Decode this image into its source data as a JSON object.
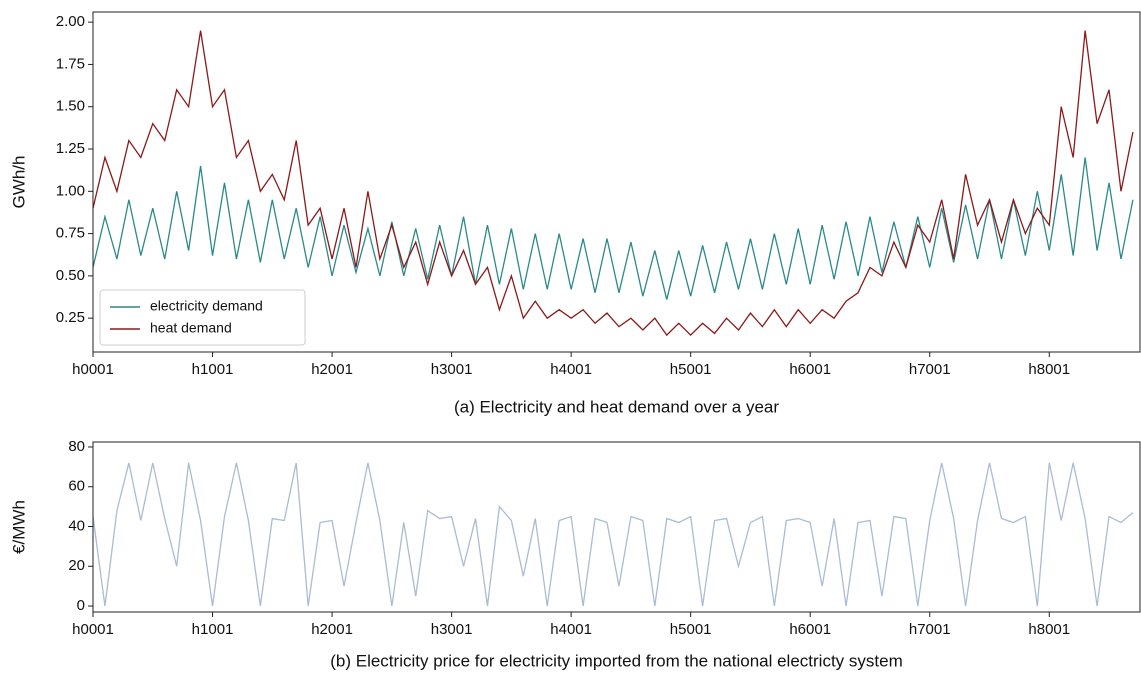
{
  "chart_data": [
    {
      "type": "line",
      "ylabel": "GWh/h",
      "caption": "(a) Electricity and heat demand over a year",
      "xlim": [
        1,
        8760
      ],
      "ylim": [
        0.05,
        2.06
      ],
      "xticks": [
        {
          "value": 1,
          "label": "h0001"
        },
        {
          "value": 1001,
          "label": "h1001"
        },
        {
          "value": 2001,
          "label": "h2001"
        },
        {
          "value": 3001,
          "label": "h3001"
        },
        {
          "value": 4001,
          "label": "h4001"
        },
        {
          "value": 5001,
          "label": "h5001"
        },
        {
          "value": 6001,
          "label": "h6001"
        },
        {
          "value": 7001,
          "label": "h7001"
        },
        {
          "value": 8001,
          "label": "h8001"
        }
      ],
      "yticks": [
        {
          "value": 0.25,
          "label": "0.25"
        },
        {
          "value": 0.5,
          "label": "0.50"
        },
        {
          "value": 0.75,
          "label": "0.75"
        },
        {
          "value": 1,
          "label": "1.00"
        },
        {
          "value": 1.25,
          "label": "1.25"
        },
        {
          "value": 1.5,
          "label": "1.50"
        },
        {
          "value": 1.75,
          "label": "1.75"
        },
        {
          "value": 2,
          "label": "2.00"
        }
      ],
      "legend": "lower left",
      "x": [
        1,
        101,
        201,
        301,
        401,
        501,
        601,
        701,
        801,
        901,
        1001,
        1101,
        1201,
        1301,
        1401,
        1501,
        1601,
        1701,
        1801,
        1901,
        2001,
        2101,
        2201,
        2301,
        2401,
        2501,
        2601,
        2701,
        2801,
        2901,
        3001,
        3101,
        3201,
        3301,
        3401,
        3501,
        3601,
        3701,
        3801,
        3901,
        4001,
        4101,
        4201,
        4301,
        4401,
        4501,
        4601,
        4701,
        4801,
        4901,
        5001,
        5101,
        5201,
        5301,
        5401,
        5501,
        5601,
        5701,
        5801,
        5901,
        6001,
        6101,
        6201,
        6301,
        6401,
        6501,
        6601,
        6701,
        6801,
        6901,
        7001,
        7101,
        7201,
        7301,
        7401,
        7501,
        7601,
        7701,
        7801,
        7901,
        8001,
        8101,
        8201,
        8301,
        8401,
        8501,
        8601,
        8701
      ],
      "series": [
        {
          "name": "electricity demand",
          "color": "#2a8a8a",
          "values": [
            0.55,
            0.85,
            0.6,
            0.95,
            0.62,
            0.9,
            0.6,
            1.0,
            0.65,
            1.15,
            0.62,
            1.05,
            0.6,
            0.95,
            0.58,
            0.95,
            0.6,
            0.9,
            0.55,
            0.85,
            0.5,
            0.8,
            0.52,
            0.78,
            0.5,
            0.82,
            0.5,
            0.78,
            0.48,
            0.8,
            0.5,
            0.85,
            0.45,
            0.8,
            0.45,
            0.78,
            0.42,
            0.75,
            0.42,
            0.75,
            0.42,
            0.72,
            0.4,
            0.72,
            0.4,
            0.7,
            0.38,
            0.65,
            0.36,
            0.65,
            0.38,
            0.68,
            0.4,
            0.7,
            0.42,
            0.72,
            0.42,
            0.75,
            0.45,
            0.78,
            0.45,
            0.8,
            0.48,
            0.82,
            0.5,
            0.85,
            0.52,
            0.82,
            0.55,
            0.85,
            0.55,
            0.9,
            0.58,
            0.92,
            0.6,
            0.95,
            0.6,
            0.95,
            0.62,
            1.0,
            0.65,
            1.1,
            0.62,
            1.2,
            0.65,
            1.05,
            0.6,
            0.95
          ]
        },
        {
          "name": "heat demand",
          "color": "#8b1a1a",
          "values": [
            0.9,
            1.2,
            1.0,
            1.3,
            1.2,
            1.4,
            1.3,
            1.6,
            1.5,
            1.95,
            1.5,
            1.6,
            1.2,
            1.3,
            1.0,
            1.1,
            0.95,
            1.3,
            0.8,
            0.9,
            0.6,
            0.9,
            0.55,
            1.0,
            0.6,
            0.8,
            0.55,
            0.7,
            0.45,
            0.7,
            0.5,
            0.65,
            0.45,
            0.55,
            0.3,
            0.5,
            0.25,
            0.35,
            0.25,
            0.3,
            0.25,
            0.3,
            0.22,
            0.28,
            0.2,
            0.25,
            0.18,
            0.25,
            0.15,
            0.22,
            0.15,
            0.22,
            0.16,
            0.25,
            0.18,
            0.28,
            0.2,
            0.3,
            0.2,
            0.3,
            0.22,
            0.3,
            0.25,
            0.35,
            0.4,
            0.55,
            0.5,
            0.7,
            0.55,
            0.8,
            0.7,
            0.95,
            0.6,
            1.1,
            0.8,
            0.95,
            0.7,
            0.95,
            0.75,
            0.9,
            0.8,
            1.5,
            1.2,
            1.95,
            1.4,
            1.6,
            1.0,
            1.35
          ]
        }
      ]
    },
    {
      "type": "line",
      "ylabel": "€/MWh",
      "caption": "(b) Electricity price for electricity imported from the national electricty system",
      "xlim": [
        1,
        8760
      ],
      "ylim": [
        -3,
        82.5
      ],
      "xticks": [
        {
          "value": 1,
          "label": "h0001"
        },
        {
          "value": 1001,
          "label": "h1001"
        },
        {
          "value": 2001,
          "label": "h2001"
        },
        {
          "value": 3001,
          "label": "h3001"
        },
        {
          "value": 4001,
          "label": "h4001"
        },
        {
          "value": 5001,
          "label": "h5001"
        },
        {
          "value": 6001,
          "label": "h6001"
        },
        {
          "value": 7001,
          "label": "h7001"
        },
        {
          "value": 8001,
          "label": "h8001"
        }
      ],
      "yticks": [
        0,
        20,
        40,
        60,
        80
      ],
      "color": "#a9bcd4",
      "x": [
        1,
        101,
        201,
        301,
        401,
        501,
        601,
        701,
        801,
        901,
        1001,
        1101,
        1201,
        1301,
        1401,
        1501,
        1601,
        1701,
        1801,
        1901,
        2001,
        2101,
        2201,
        2301,
        2401,
        2501,
        2601,
        2701,
        2801,
        2901,
        3001,
        3101,
        3201,
        3301,
        3401,
        3501,
        3601,
        3701,
        3801,
        3901,
        4001,
        4101,
        4201,
        4301,
        4401,
        4501,
        4601,
        4701,
        4801,
        4901,
        5001,
        5101,
        5201,
        5301,
        5401,
        5501,
        5601,
        5701,
        5801,
        5901,
        6001,
        6101,
        6201,
        6301,
        6401,
        6501,
        6601,
        6701,
        6801,
        6901,
        7001,
        7101,
        7201,
        7301,
        7401,
        7501,
        7601,
        7701,
        7801,
        7901,
        8001,
        8101,
        8201,
        8301,
        8401,
        8501,
        8601,
        8701
      ],
      "values": [
        45,
        0,
        48,
        72,
        43,
        72,
        44,
        20,
        72,
        43,
        0,
        45,
        72,
        43,
        0,
        44,
        43,
        72,
        0,
        42,
        43,
        10,
        42,
        72,
        43,
        0,
        42,
        5,
        48,
        44,
        45,
        20,
        44,
        0,
        50,
        43,
        15,
        44,
        0,
        43,
        45,
        0,
        44,
        42,
        10,
        45,
        43,
        0,
        44,
        42,
        45,
        0,
        43,
        44,
        20,
        42,
        45,
        0,
        43,
        44,
        42,
        10,
        44,
        0,
        42,
        43,
        5,
        45,
        44,
        0,
        43,
        72,
        44,
        0,
        43,
        72,
        44,
        42,
        45,
        0,
        72,
        43,
        72,
        44,
        0,
        45,
        42,
        47
      ]
    }
  ]
}
